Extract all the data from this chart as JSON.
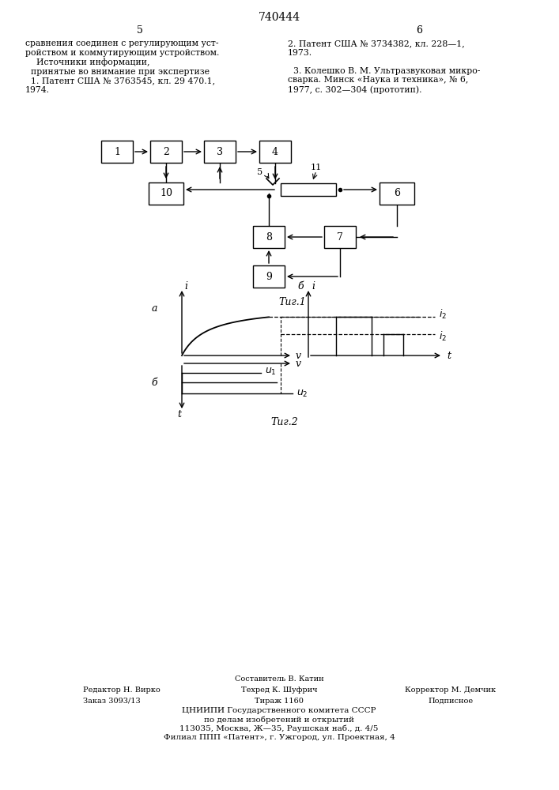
{
  "page_title": "740444",
  "col_left": "5",
  "col_right": "6",
  "text_left": "сравнения соединен с регулирующим уст-\nройством и коммутирующим устройством.\n    Источники информации,\n  принятые во внимание при экспертизе\n  1. Патент США № 3763545, кл. 29 470.1,\n1974.",
  "text_right": "2. Патент США № 3734382, кл. 228—1,\n1973.\n\n  3. Колешко В. М. Ультразвуковая микро-\nсварка. Минск «Наука и техника», № 6,\n1977, с. 302—304 (прототип).",
  "fig1_caption": "Τиг.1",
  "fig2_caption": "Τиг.2",
  "footer_compositor": "Составитель В. Катин",
  "footer_editor": "Редактор Н. Вирко",
  "footer_tech": "Техред К. Шуфрич",
  "footer_corrector": "Корректор М. Демчик",
  "footer_order": "Заказ 3093/13",
  "footer_tirazh": "Тираж 1160",
  "footer_podpisnoe": "Подписное",
  "footer_cniip1": "ЦНИИПИ Государственного комитета СССР",
  "footer_cniip2": "по делам изобретений и открытий",
  "footer_cniip3": "113035, Москва, Ж—35, Раушская наб., д. 4/5",
  "footer_cniip4": "Филиал ППП «Патент», г. Ужгород, ул. Проектная, 4",
  "bg_color": "#ffffff"
}
